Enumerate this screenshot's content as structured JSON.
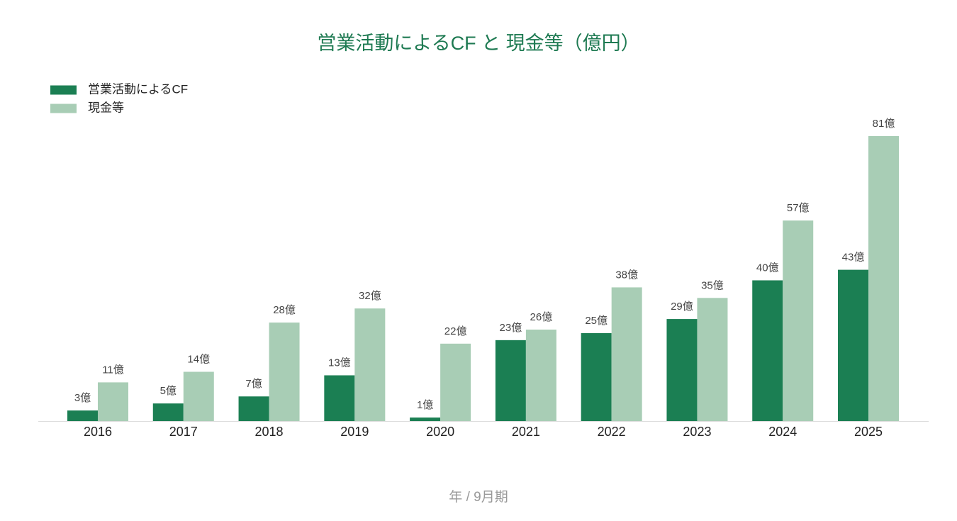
{
  "chart_data": {
    "type": "bar",
    "title": "営業活動によるCF と 現金等（億円）",
    "x_label": "年 / 9月期",
    "categories": [
      "2016",
      "2017",
      "2018",
      "2019",
      "2020",
      "2021",
      "2022",
      "2023",
      "2024",
      "2025"
    ],
    "series": [
      {
        "name": "営業活動によるCF",
        "color": "#1b7f53",
        "values": [
          3,
          5,
          7,
          13,
          1,
          23,
          25,
          29,
          40,
          43
        ],
        "value_labels": [
          "3億",
          "5億",
          "7億",
          "13億",
          "1億",
          "23億",
          "25億",
          "29億",
          "40億",
          "43億"
        ]
      },
      {
        "name": "現金等",
        "color": "#a8cdb5",
        "values": [
          11,
          14,
          28,
          32,
          22,
          26,
          38,
          35,
          57,
          81
        ],
        "value_labels": [
          "11億",
          "14億",
          "28億",
          "32億",
          "22億",
          "26億",
          "38億",
          "35億",
          "57億",
          "81億"
        ]
      }
    ],
    "ylim": [
      0,
      81
    ],
    "legend": "top-left"
  }
}
